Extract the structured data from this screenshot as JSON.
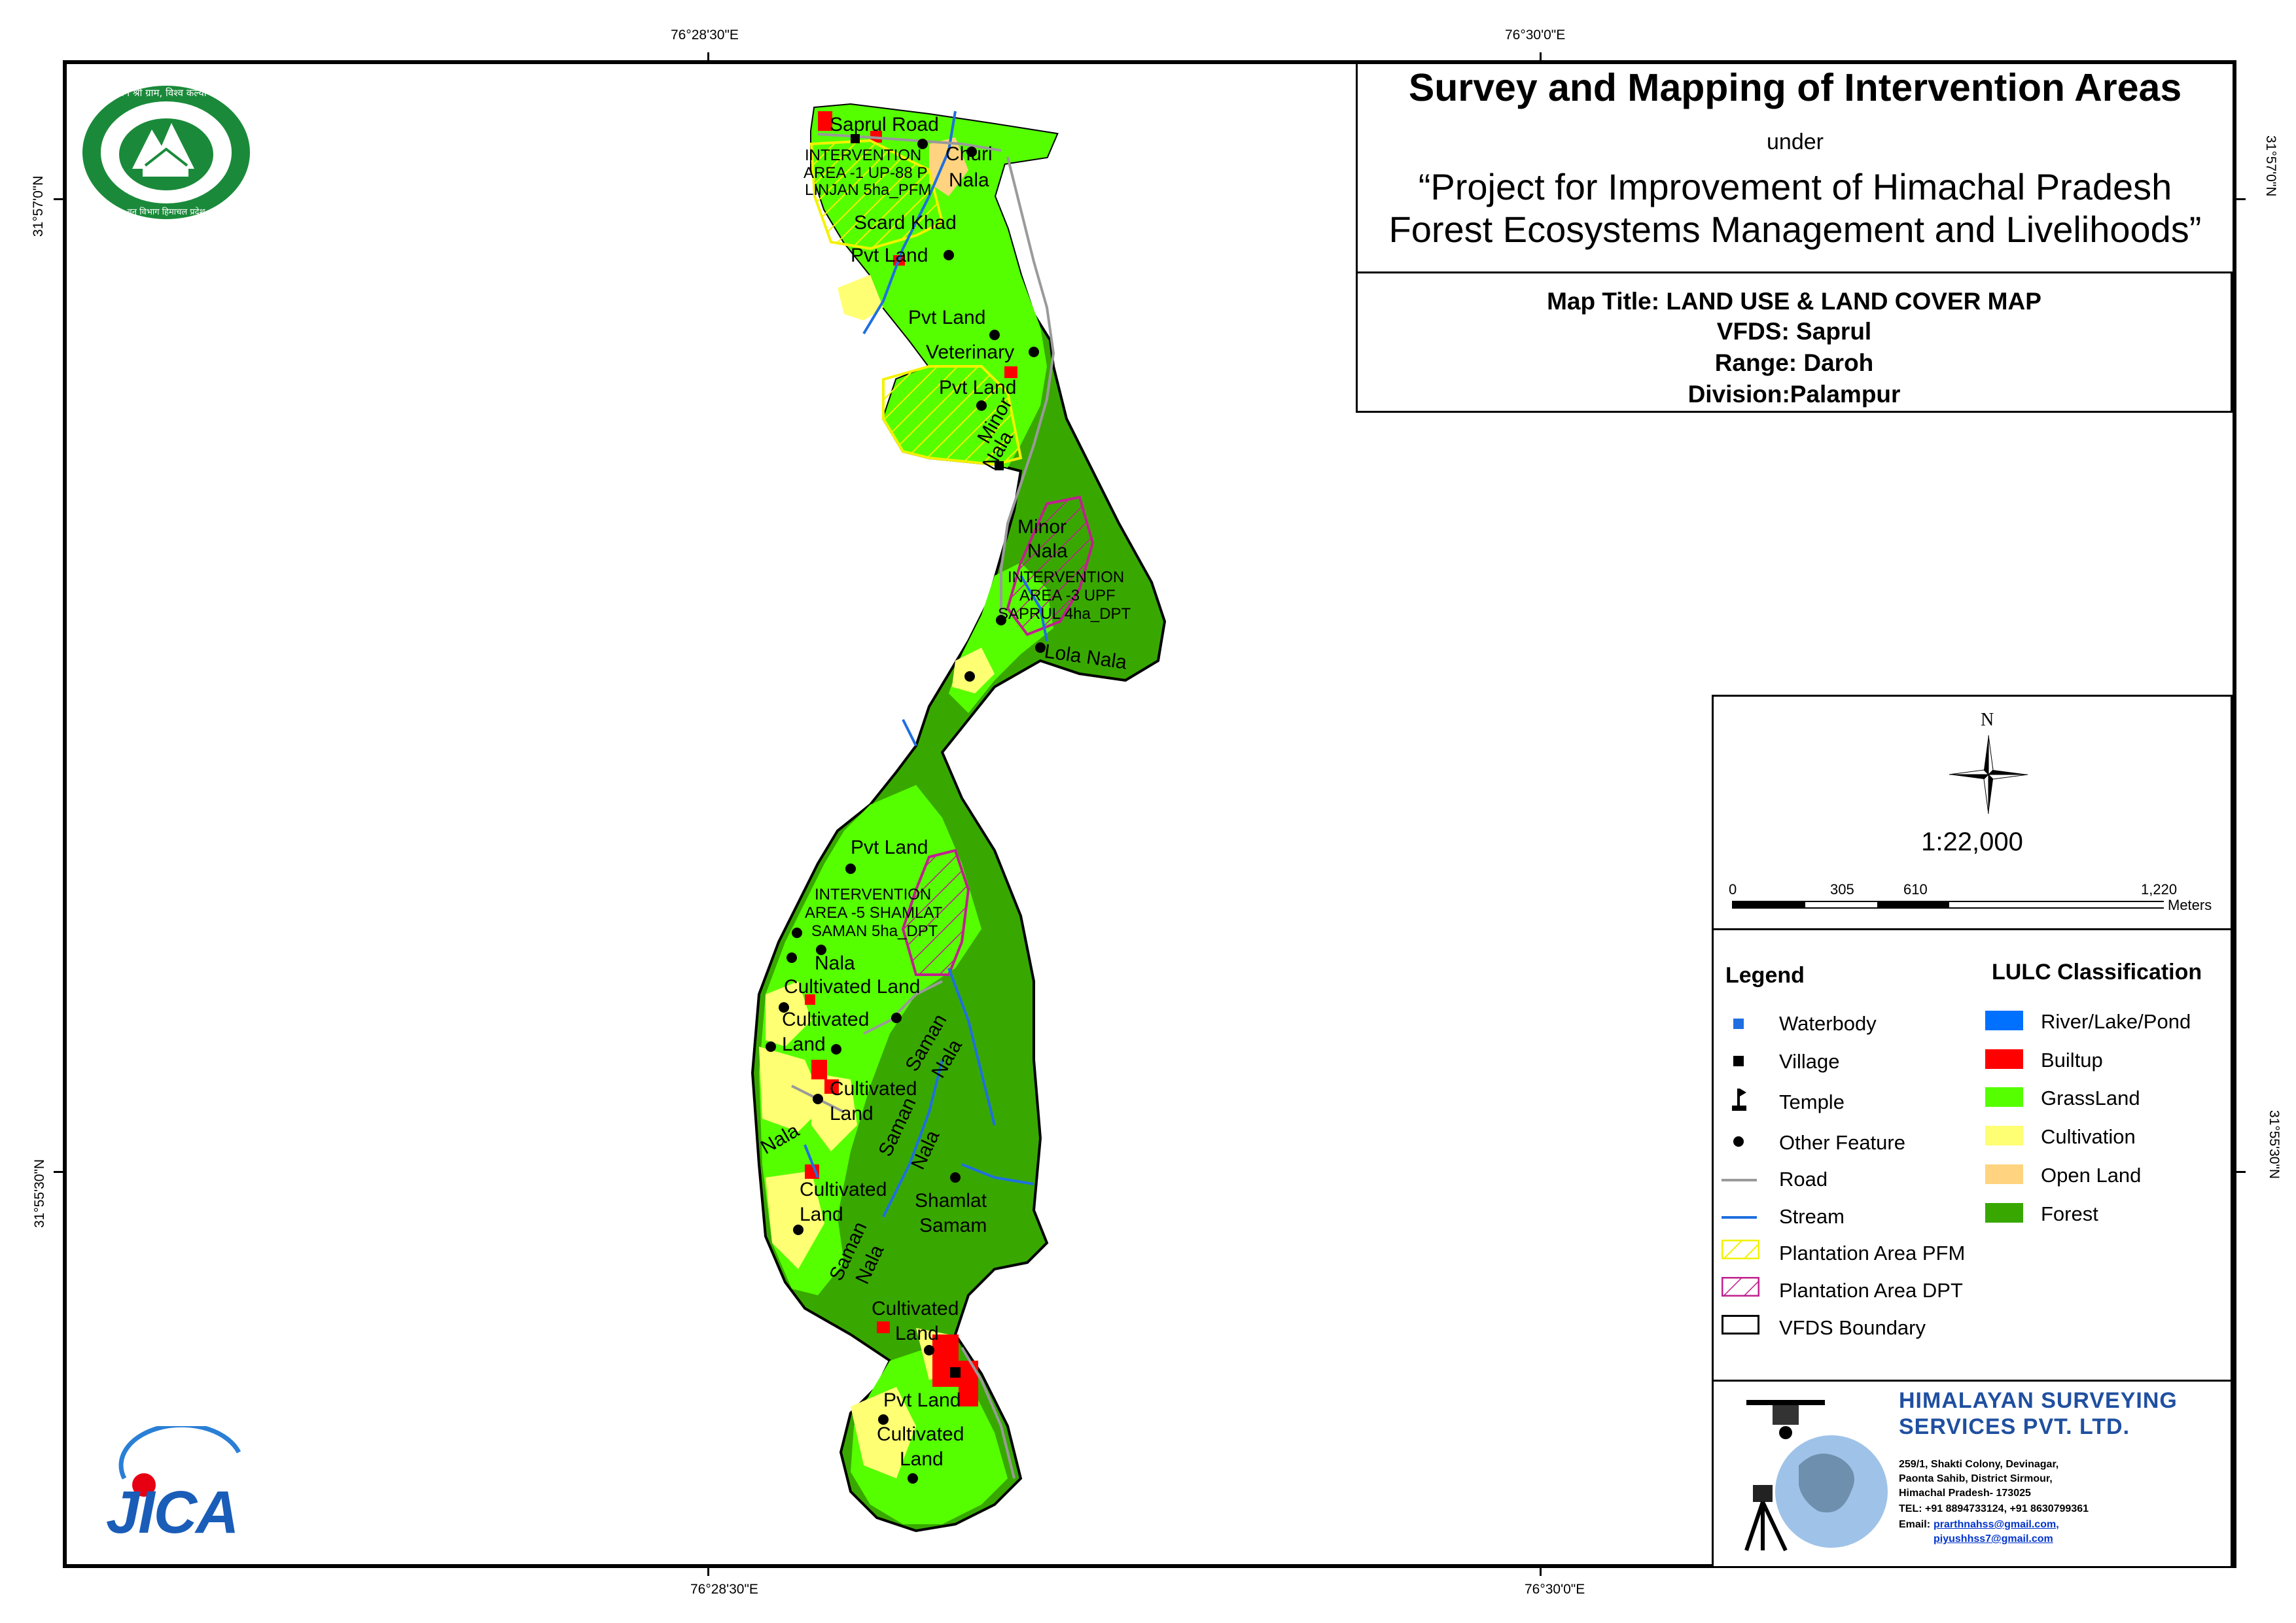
{
  "title": {
    "main": "Survey and Mapping of Intervention Areas",
    "under": "under",
    "project_line1": "“Project for Improvement of Himachal Pradesh",
    "project_line2": "Forest Ecosystems Management and Livelihoods”"
  },
  "map_info": {
    "map_title": "Map Title: LAND USE & LAND COVER MAP",
    "vfds": "VFDS: Saprul",
    "range": "Range: Daroh",
    "division": "Division:Palampur"
  },
  "coordinates": {
    "top_left": "76°28'30\"E",
    "top_right": "76°30'0\"E",
    "bottom_left": "76°28'30\"E",
    "bottom_right": "76°30'0\"E",
    "left_top": "31°57'0\"N",
    "left_bottom": "31°55'30\"N",
    "right_top": "31°57'0\"N",
    "right_bottom": "31°55'30\"N"
  },
  "north_arrow": {
    "label": "N"
  },
  "scale": {
    "ratio": "1:22,000",
    "ticks": [
      "0",
      "305",
      "610",
      "1,220"
    ],
    "unit": "Meters"
  },
  "legend": {
    "title": "Legend",
    "items": [
      {
        "label": "Waterbody",
        "icon": "waterbody-square-icon",
        "color": "#1f6fe0"
      },
      {
        "label": "Village",
        "icon": "village-square-icon",
        "color": "#000000"
      },
      {
        "label": "Temple",
        "icon": "temple-flag-icon",
        "color": "#000000"
      },
      {
        "label": "Other Feature",
        "icon": "dot-icon",
        "color": "#000000"
      },
      {
        "label": "Road",
        "icon": "road-line-icon",
        "color": "#9a9a9a"
      },
      {
        "label": "Stream",
        "icon": "stream-line-icon",
        "color": "#1f6fe0"
      },
      {
        "label": "Plantation Area PFM",
        "icon": "pfm-hatch-icon",
        "color": "#f2f200"
      },
      {
        "label": "Plantation Area DPT",
        "icon": "dpt-hatch-icon",
        "color": "#c0208f"
      },
      {
        "label": "VFDS Boundary",
        "icon": "boundary-box-icon",
        "color": "#000000"
      }
    ]
  },
  "lulc": {
    "title": "LULC Classification",
    "classes": [
      {
        "label": "River/Lake/Pond",
        "color": "#0070ff"
      },
      {
        "label": "Builtup",
        "color": "#ff0000"
      },
      {
        "label": "GrassLand",
        "color": "#55ff00"
      },
      {
        "label": "Cultivation",
        "color": "#ffff73"
      },
      {
        "label": "Open Land",
        "color": "#ffd37f"
      },
      {
        "label": "Forest",
        "color": "#38a800"
      }
    ]
  },
  "company": {
    "name_line1": "HIMALAYAN SURVEYING",
    "name_line2": "SERVICES PVT. LTD.",
    "address_line1": "259/1, Shakti Colony, Devinagar,",
    "address_line2": "Paonta Sahib, District Sirmour,",
    "address_line3": "Himachal Pradesh- 173025",
    "tel": "TEL: +91 8894733124, +91 8630799361",
    "email_label": "Email:",
    "email1": "prarthnahss@gmail.com,",
    "email2": "piyushhss7@gmail.com"
  },
  "logos": {
    "forest_dept_text": "वन श्री ग्राम, विश्व कल्याण",
    "forest_dept_bottom": "वन विभाग हिमाचल प्रदेश",
    "jica": "JICA"
  },
  "map_labels": [
    "Saprul Road",
    "INTERVENTION",
    "AREA -1 UP-88 P",
    "LINJAN 5ha_PFM",
    "Churi",
    "Nala",
    "Scard Khad",
    "Pvt Land",
    "Pvt Land",
    "Veterinary",
    "Pvt Land",
    "Minor",
    "Nala",
    "Minor",
    "Nala",
    "INTERVENTION",
    "AREA -3 UPF",
    "SAPRUL 4ha_DPT",
    "Lola Nala",
    "Pvt Land",
    "INTERVENTION",
    "AREA -5 SHAMLAT",
    "SAMAN 5ha_DPT",
    "Nala",
    "Cultivated Land",
    "Cultivated",
    "Land",
    "Saman",
    "Nala",
    "Cultivated",
    "Land",
    "Nala",
    "Saman",
    "Nala",
    "Cultivated",
    "Land",
    "Shamlat",
    "Samam",
    "Saman",
    "Nala",
    "Cultivated",
    "Land",
    "Pvt Land",
    "Cultivated",
    "Land"
  ]
}
